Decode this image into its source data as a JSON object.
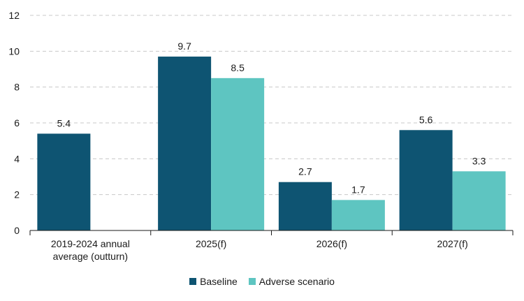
{
  "chart_data": {
    "type": "bar",
    "categories": [
      "2019-2024 annual average (outturn)",
      "2025(f)",
      "2026(f)",
      "2027(f)"
    ],
    "category_lines": [
      [
        "2019-2024 annual",
        "average (outturn)"
      ],
      [
        "2025(f)"
      ],
      [
        "2026(f)"
      ],
      [
        "2027(f)"
      ]
    ],
    "series": [
      {
        "name": "Baseline",
        "color": "#0e5472",
        "values": [
          5.4,
          9.7,
          2.7,
          5.6
        ]
      },
      {
        "name": "Adverse scenario",
        "color": "#5ec5c1",
        "values": [
          null,
          8.5,
          1.7,
          3.3
        ]
      }
    ],
    "ylim": [
      0,
      12
    ],
    "yticks": [
      0,
      2,
      4,
      6,
      8,
      10,
      12
    ],
    "grid": true,
    "legend_position": "bottom-center",
    "title": "",
    "xlabel": "",
    "ylabel": ""
  }
}
